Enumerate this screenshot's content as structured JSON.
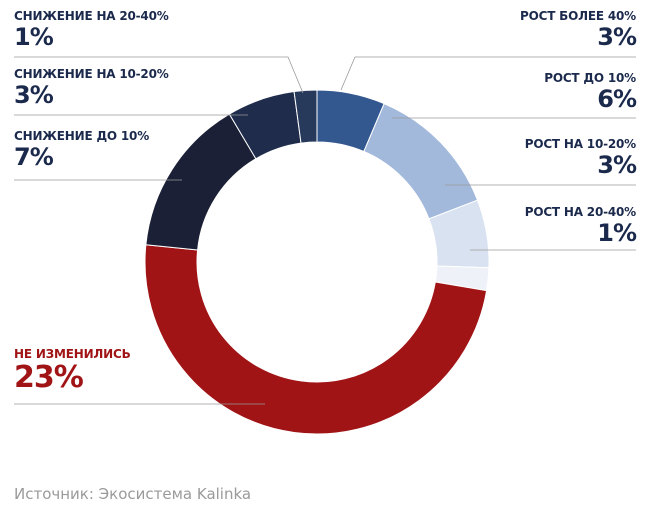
{
  "chart_data": {
    "type": "pie",
    "donut": true,
    "categories": [
      "РОСТ БОЛЕЕ 40%",
      "РОСТ ДО 10%",
      "РОСТ НА 10-20%",
      "РОСТ НА 20-40%",
      "НЕ ИЗМЕНИЛИСЬ",
      "СНИЖЕНИЕ ДО 10%",
      "СНИЖЕНИЕ НА 10-20%",
      "СНИЖЕНИЕ НА 20-40%"
    ],
    "values": [
      3,
      6,
      3,
      1,
      23,
      7,
      3,
      1
    ],
    "value_labels": [
      "3%",
      "6%",
      "3%",
      "1%",
      "23%",
      "7%",
      "3%",
      "1%"
    ],
    "colors": [
      "#33578f",
      "#a2b9dc",
      "#d9e2f1",
      "#eef2f8",
      "#a01416",
      "#1b2036",
      "#1f2c4b",
      "#273a5c"
    ],
    "label_colors": [
      "#1b2a4c",
      "#1b2a4c",
      "#1b2a4c",
      "#1b2a4c",
      "#a01416",
      "#1b2a4c",
      "#1b2a4c",
      "#1b2a4c"
    ]
  },
  "source": "Источник: Экосистема Kalinka"
}
